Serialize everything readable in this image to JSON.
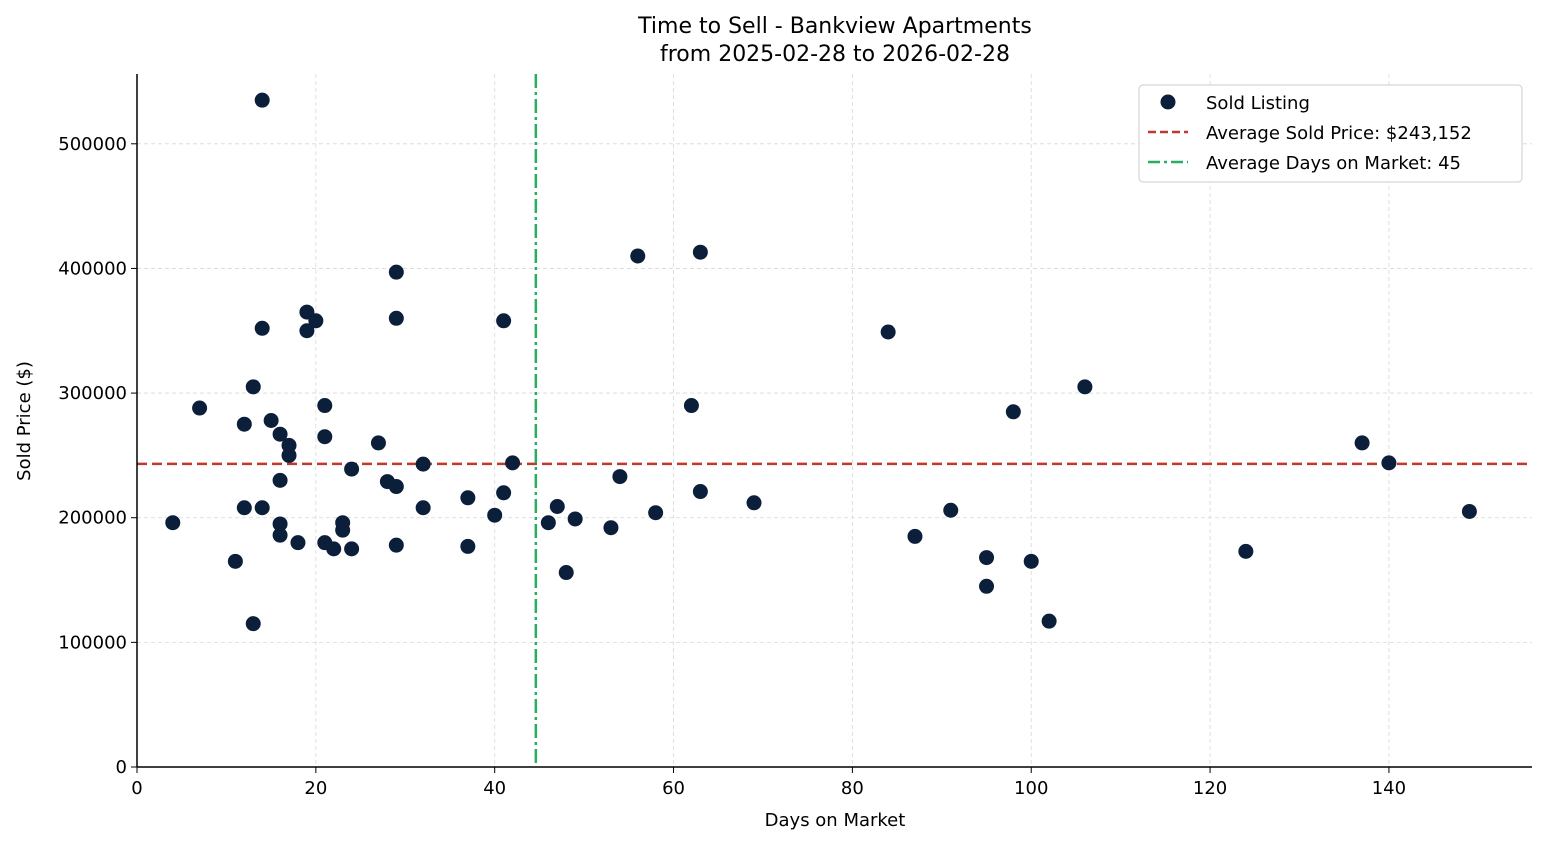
{
  "chart_data": {
    "type": "scatter",
    "title": "Time to Sell - Bankview Apartments",
    "subtitle": "from 2025-02-28 to 2026-02-28",
    "xlabel": "Days on Market",
    "ylabel": "Sold Price ($)",
    "xlim": [
      0,
      156
    ],
    "ylim": [
      0,
      556000
    ],
    "xticks": [
      0,
      20,
      40,
      60,
      80,
      100,
      120,
      140
    ],
    "yticks": [
      0,
      100000,
      200000,
      300000,
      400000,
      500000
    ],
    "grid": true,
    "legend_position": "top-right",
    "colors": {
      "points": "#0b1f3a",
      "avg_price": "#c0392b",
      "avg_days": "#27ae60"
    },
    "legend": [
      {
        "label": "Sold Listing",
        "kind": "marker"
      },
      {
        "label": "Average Sold Price: $243,152",
        "kind": "dashed"
      },
      {
        "label": "Average Days on Market: 45",
        "kind": "dashdot"
      }
    ],
    "avg_price": 243152,
    "avg_days": 44.6,
    "series": [
      {
        "name": "Sold Listing",
        "points": [
          [
            4,
            196000
          ],
          [
            7,
            288000
          ],
          [
            11,
            165000
          ],
          [
            12,
            275000
          ],
          [
            12,
            208000
          ],
          [
            13,
            305000
          ],
          [
            13,
            115000
          ],
          [
            14,
            535000
          ],
          [
            14,
            352000
          ],
          [
            14,
            208000
          ],
          [
            15,
            278000
          ],
          [
            16,
            267000
          ],
          [
            16,
            230000
          ],
          [
            16,
            195000
          ],
          [
            16,
            186000
          ],
          [
            17,
            258000
          ],
          [
            17,
            250000
          ],
          [
            18,
            180000
          ],
          [
            19,
            365000
          ],
          [
            19,
            350000
          ],
          [
            20,
            358000
          ],
          [
            21,
            290000
          ],
          [
            21,
            265000
          ],
          [
            21,
            180000
          ],
          [
            22,
            175000
          ],
          [
            23,
            196000
          ],
          [
            23,
            190000
          ],
          [
            24,
            239000
          ],
          [
            24,
            175000
          ],
          [
            27,
            260000
          ],
          [
            28,
            229000
          ],
          [
            29,
            397000
          ],
          [
            29,
            360000
          ],
          [
            29,
            225000
          ],
          [
            29,
            178000
          ],
          [
            32,
            243000
          ],
          [
            32,
            208000
          ],
          [
            37,
            216000
          ],
          [
            37,
            177000
          ],
          [
            40,
            202000
          ],
          [
            41,
            358000
          ],
          [
            41,
            220000
          ],
          [
            42,
            244000
          ],
          [
            46,
            196000
          ],
          [
            47,
            209000
          ],
          [
            48,
            156000
          ],
          [
            49,
            199000
          ],
          [
            53,
            192000
          ],
          [
            54,
            233000
          ],
          [
            56,
            410000
          ],
          [
            58,
            204000
          ],
          [
            62,
            290000
          ],
          [
            63,
            413000
          ],
          [
            63,
            221000
          ],
          [
            69,
            212000
          ],
          [
            84,
            349000
          ],
          [
            87,
            185000
          ],
          [
            91,
            206000
          ],
          [
            95,
            168000
          ],
          [
            95,
            145000
          ],
          [
            98,
            285000
          ],
          [
            100,
            165000
          ],
          [
            102,
            117000
          ],
          [
            106,
            305000
          ],
          [
            124,
            173000
          ],
          [
            137,
            260000
          ],
          [
            140,
            244000
          ],
          [
            149,
            205000
          ]
        ]
      }
    ]
  }
}
